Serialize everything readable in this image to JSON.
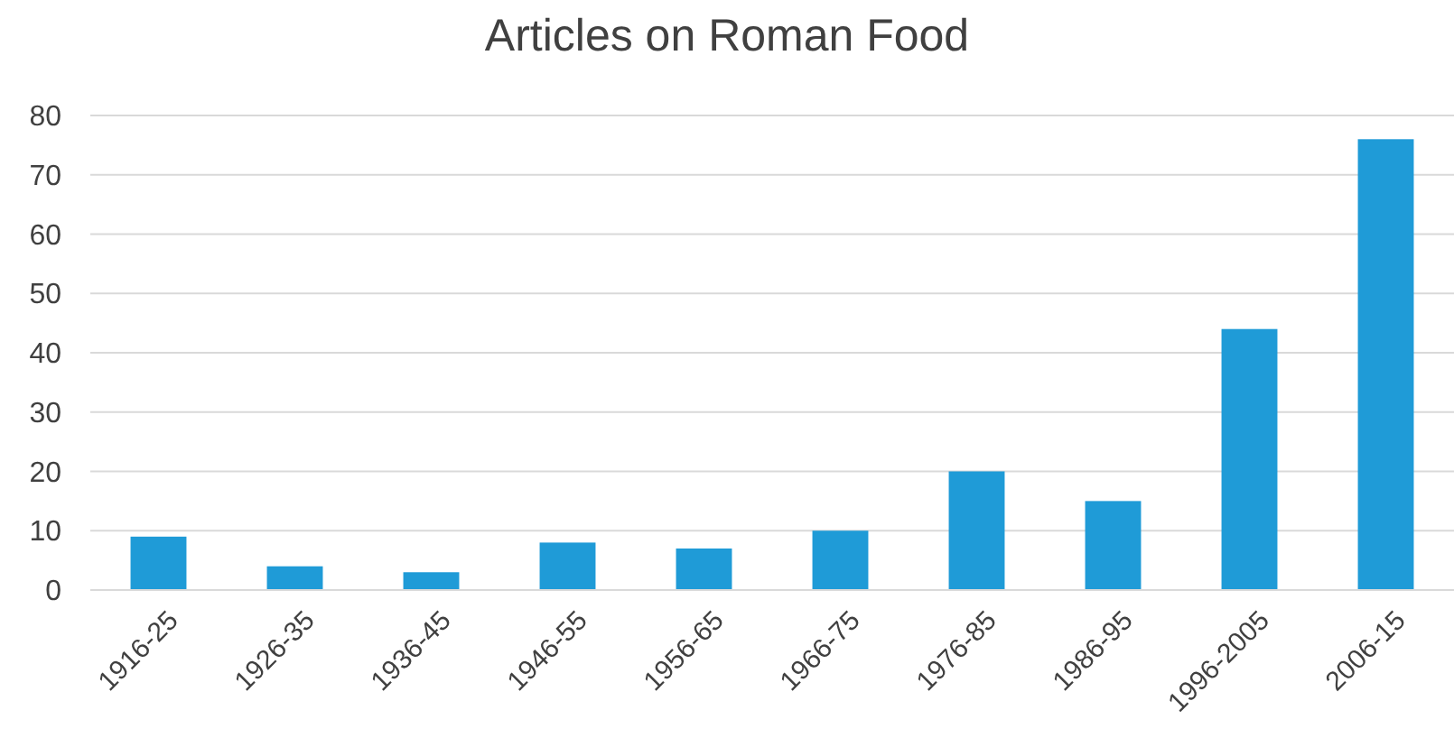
{
  "chart_data": {
    "type": "bar",
    "title": "Articles on Roman Food",
    "categories": [
      "1916-25",
      "1926-35",
      "1936-45",
      "1946-55",
      "1956-65",
      "1966-75",
      "1976-85",
      "1986-95",
      "1996-2005",
      "2006-15"
    ],
    "values": [
      9,
      4,
      3,
      8,
      7,
      10,
      20,
      15,
      44,
      76
    ],
    "color": "#1f9bd7",
    "ylim": [
      0,
      80
    ],
    "yticks": [
      0,
      10,
      20,
      30,
      40,
      50,
      60,
      70,
      80
    ],
    "grid": "y"
  }
}
